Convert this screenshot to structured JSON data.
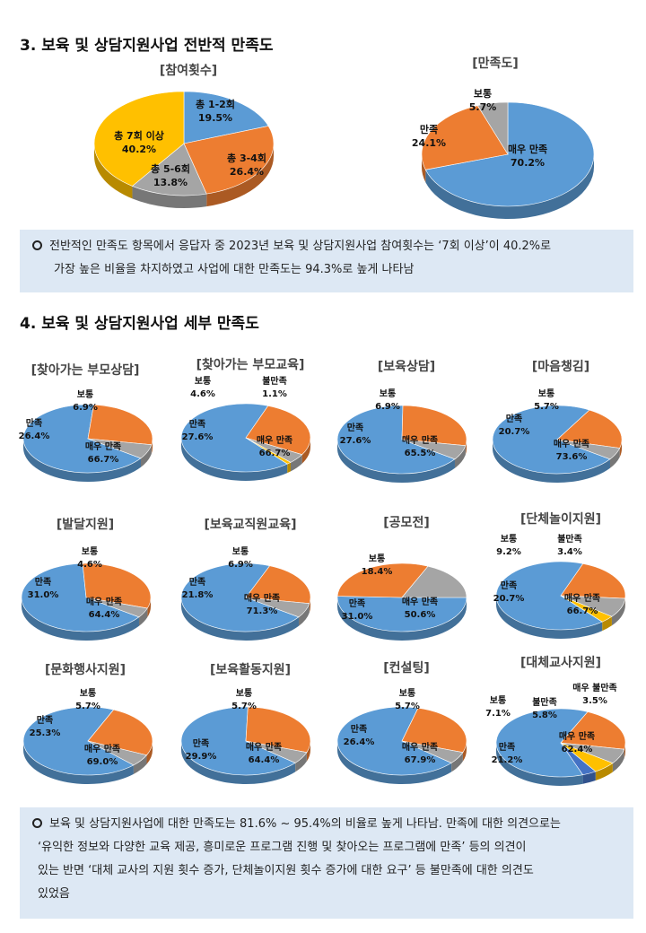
{
  "section3": {
    "title": "3. 보육 및 상담지원사업 전반적 만족도",
    "note": [
      "전반적인 만족도 항목에서 응답자 중 2023년 보육 및 상담지원사업 참여횟수는 ‘7회 이상’이 40.2%로",
      "가장 높은 비율을 차지하였고 사업에 대한 만족도는 94.3%로 높게 나타남"
    ]
  },
  "section4": {
    "title": "4. 보육 및 상담지원사업 세부 만족도",
    "note": [
      "보육 및 상담지원사업에 대한 만족도는 81.6% ~ 95.4%의 비율로 높게 나타남. 만족에 대한 의견으로는",
      "‘유익한 정보와 다양한 교육 제공, 흥미로운 프로그램 진행 및 찾아오는 프로그램에 만족’ 등의 의견이",
      "있는 반면 ‘대체 교사의 지원 횟수 증가,  단체놀이지원 횟수 증가에 대한 요구’ 등 불만족에 대한 의견도",
      "있었음"
    ]
  },
  "colors": {
    "very_satisfied": "#5b9bd5",
    "satisfied": "#ed7d31",
    "neutral": "#a5a5a5",
    "dissatisfied": "#ffc000",
    "very_dissatisfied": "#4472c4",
    "note_bg": "#dde8f4"
  },
  "chart_data": [
    {
      "type": "pie",
      "title": "[참여횟수]",
      "start": "top",
      "slices": [
        {
          "label": "총 1-2회",
          "value": 19.5,
          "value_text": "19.5%",
          "color": "#5b9bd5"
        },
        {
          "label": "총 3-4회",
          "value": 26.4,
          "value_text": "26.4%",
          "color": "#ed7d31"
        },
        {
          "label": "총 5-6회",
          "value": 13.8,
          "value_text": "13.8%",
          "color": "#a5a5a5"
        },
        {
          "label": "총 7회 이상",
          "value": 40.2,
          "value_text": "40.2%",
          "color": "#ffc000"
        }
      ]
    },
    {
      "type": "pie",
      "title": "[만족도]",
      "start": "top",
      "slices": [
        {
          "label": "매우 만족",
          "value": 70.2,
          "value_text": "70.2%",
          "color": "#5b9bd5"
        },
        {
          "label": "만족",
          "value": 24.1,
          "value_text": "24.1%",
          "color": "#ed7d31"
        },
        {
          "label": "보통",
          "value": 5.7,
          "value_text": "5.7%",
          "color": "#a5a5a5"
        }
      ]
    },
    {
      "type": "pie",
      "title": "[찾아가는 부모상담]",
      "slices": [
        {
          "label": "매우 만족",
          "value": 66.7,
          "value_text": "66.7%",
          "color": "#5b9bd5"
        },
        {
          "label": "만족",
          "value": 26.4,
          "value_text": "26.4%",
          "color": "#ed7d31"
        },
        {
          "label": "보통",
          "value": 6.9,
          "value_text": "6.9%",
          "color": "#a5a5a5"
        }
      ]
    },
    {
      "type": "pie",
      "title": "[찾아가는 부모교육]",
      "slices": [
        {
          "label": "매우 만족",
          "value": 66.7,
          "value_text": "66.7%",
          "color": "#5b9bd5"
        },
        {
          "label": "만족",
          "value": 27.6,
          "value_text": "27.6%",
          "color": "#ed7d31"
        },
        {
          "label": "보통",
          "value": 4.6,
          "value_text": "4.6%",
          "color": "#a5a5a5"
        },
        {
          "label": "불만족",
          "value": 1.1,
          "value_text": "1.1%",
          "color": "#ffc000"
        }
      ]
    },
    {
      "type": "pie",
      "title": "[보육상담]",
      "slices": [
        {
          "label": "매우 만족",
          "value": 65.5,
          "value_text": "65.5%",
          "color": "#5b9bd5"
        },
        {
          "label": "만족",
          "value": 27.6,
          "value_text": "27.6%",
          "color": "#ed7d31"
        },
        {
          "label": "보통",
          "value": 6.9,
          "value_text": "6.9%",
          "color": "#a5a5a5"
        }
      ]
    },
    {
      "type": "pie",
      "title": "[마음챙김]",
      "slices": [
        {
          "label": "매우 만족",
          "value": 73.6,
          "value_text": "73.6%",
          "color": "#5b9bd5"
        },
        {
          "label": "만족",
          "value": 20.7,
          "value_text": "20.7%",
          "color": "#ed7d31"
        },
        {
          "label": "보통",
          "value": 5.7,
          "value_text": "5.7%",
          "color": "#a5a5a5"
        }
      ]
    },
    {
      "type": "pie",
      "title": "[발달지원]",
      "slices": [
        {
          "label": "매우 만족",
          "value": 64.4,
          "value_text": "64.4%",
          "color": "#5b9bd5"
        },
        {
          "label": "만족",
          "value": 31.0,
          "value_text": "31.0%",
          "color": "#ed7d31"
        },
        {
          "label": "보통",
          "value": 4.6,
          "value_text": "4.6%",
          "color": "#a5a5a5"
        }
      ]
    },
    {
      "type": "pie",
      "title": "[보육교직원교육]",
      "slices": [
        {
          "label": "매우 만족",
          "value": 71.3,
          "value_text": "71.3%",
          "color": "#5b9bd5"
        },
        {
          "label": "만족",
          "value": 21.8,
          "value_text": "21.8%",
          "color": "#ed7d31"
        },
        {
          "label": "보통",
          "value": 6.9,
          "value_text": "6.9%",
          "color": "#a5a5a5"
        }
      ]
    },
    {
      "type": "pie",
      "title": "[공모전]",
      "slices": [
        {
          "label": "매우 만족",
          "value": 50.6,
          "value_text": "50.6%",
          "color": "#5b9bd5"
        },
        {
          "label": "만족",
          "value": 31.0,
          "value_text": "31.0%",
          "color": "#ed7d31"
        },
        {
          "label": "보통",
          "value": 18.4,
          "value_text": "18.4%",
          "color": "#a5a5a5"
        }
      ]
    },
    {
      "type": "pie",
      "title": "[단체놀이지원]",
      "slices": [
        {
          "label": "매우 만족",
          "value": 66.7,
          "value_text": "66.7%",
          "color": "#5b9bd5"
        },
        {
          "label": "만족",
          "value": 20.7,
          "value_text": "20.7%",
          "color": "#ed7d31"
        },
        {
          "label": "보통",
          "value": 9.2,
          "value_text": "9.2%",
          "color": "#a5a5a5"
        },
        {
          "label": "불만족",
          "value": 3.4,
          "value_text": "3.4%",
          "color": "#ffc000"
        }
      ]
    },
    {
      "type": "pie",
      "title": "[문화행사지원]",
      "slices": [
        {
          "label": "매우 만족",
          "value": 69.0,
          "value_text": "69.0%",
          "color": "#5b9bd5"
        },
        {
          "label": "만족",
          "value": 25.3,
          "value_text": "25.3%",
          "color": "#ed7d31"
        },
        {
          "label": "보통",
          "value": 5.7,
          "value_text": "5.7%",
          "color": "#a5a5a5"
        }
      ]
    },
    {
      "type": "pie",
      "title": "[보육활동지원]",
      "slices": [
        {
          "label": "매우 만족",
          "value": 64.4,
          "value_text": "64.4%",
          "color": "#5b9bd5"
        },
        {
          "label": "만족",
          "value": 29.9,
          "value_text": "29.9%",
          "color": "#ed7d31"
        },
        {
          "label": "보통",
          "value": 5.7,
          "value_text": "5.7%",
          "color": "#a5a5a5"
        }
      ]
    },
    {
      "type": "pie",
      "title": "[컨설팅]",
      "slices": [
        {
          "label": "매우 만족",
          "value": 67.9,
          "value_text": "67.9%",
          "color": "#5b9bd5"
        },
        {
          "label": "만족",
          "value": 26.4,
          "value_text": "26.4%",
          "color": "#ed7d31"
        },
        {
          "label": "보통",
          "value": 5.7,
          "value_text": "5.7%",
          "color": "#a5a5a5"
        }
      ]
    },
    {
      "type": "pie",
      "title": "[대체교사지원]",
      "slices": [
        {
          "label": "매우 만족",
          "value": 62.4,
          "value_text": "62.4%",
          "color": "#5b9bd5"
        },
        {
          "label": "만족",
          "value": 21.2,
          "value_text": "21.2%",
          "color": "#ed7d31"
        },
        {
          "label": "보통",
          "value": 7.1,
          "value_text": "7.1%",
          "color": "#a5a5a5"
        },
        {
          "label": "불만족",
          "value": 5.8,
          "value_text": "5.8%",
          "color": "#ffc000"
        },
        {
          "label": "매우 불만족",
          "value": 3.5,
          "value_text": "3.5%",
          "color": "#4472c4"
        }
      ]
    }
  ]
}
